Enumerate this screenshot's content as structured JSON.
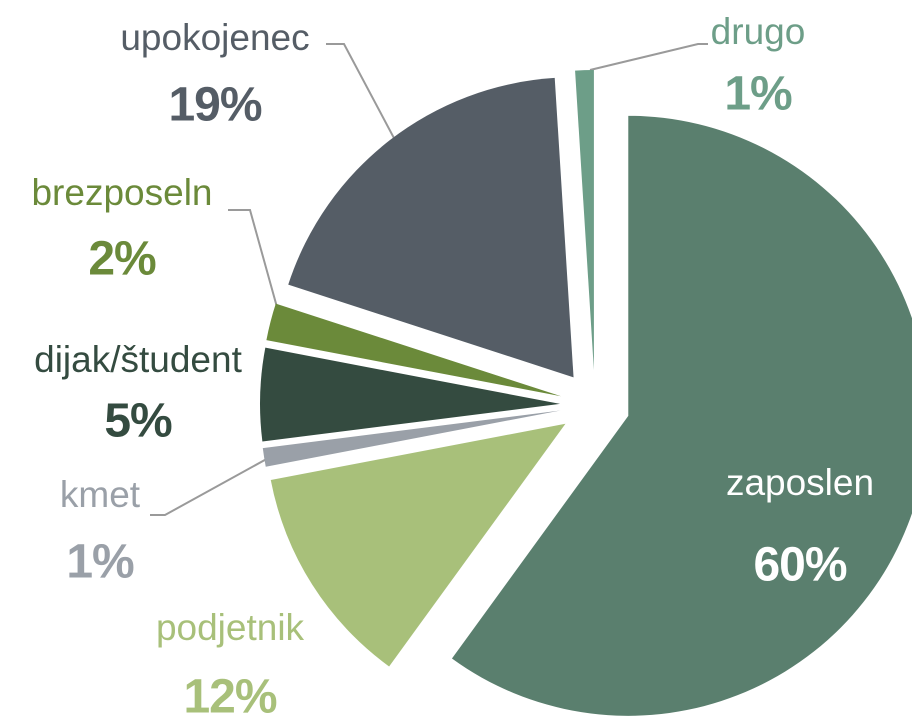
{
  "chart_data": {
    "type": "pie",
    "categories": [
      "zaposlen",
      "podjetnik",
      "kmet",
      "dijak/študent",
      "brezposeln",
      "upokojenec",
      "drugo"
    ],
    "values": [
      60,
      12,
      1,
      5,
      2,
      19,
      1
    ],
    "value_labels": [
      "60%",
      "12%",
      "1%",
      "5%",
      "2%",
      "19%",
      "1%"
    ],
    "colors": [
      "#5a7f6e",
      "#a8c07a",
      "#9aa0a8",
      "#344b40",
      "#6b8a3a",
      "#555d66",
      "#6d9e88"
    ]
  }
}
